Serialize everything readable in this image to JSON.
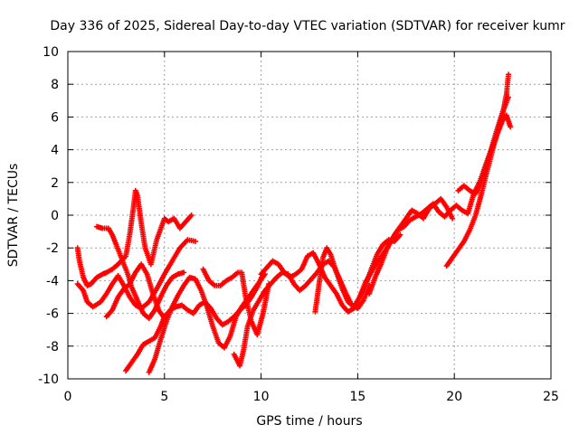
{
  "chart_data": {
    "type": "scatter",
    "title": "Day 336 of 2025, Sidereal Day-to-day VTEC variation (SDTVAR) for receiver kumr",
    "xlabel": "GPS time / hours",
    "ylabel": "SDTVAR / TECUs",
    "xlim": [
      0,
      25
    ],
    "ylim": [
      -10,
      10
    ],
    "x_ticks": [
      0,
      5,
      10,
      15,
      20,
      25
    ],
    "y_ticks": [
      -10,
      -8,
      -6,
      -4,
      -2,
      0,
      2,
      4,
      6,
      8,
      10
    ],
    "grid": true,
    "marker": "plus",
    "color": "#ff0000",
    "series": [
      {
        "x": [
          0.5,
          0.6,
          0.8,
          1.0,
          1.2,
          1.5,
          1.8,
          2.0,
          2.3,
          2.6,
          3.0,
          3.2,
          3.4,
          3.5,
          3.6,
          3.8,
          4.0,
          4.3,
          4.6,
          5.0,
          5.2,
          5.5,
          5.8,
          6.1,
          6.4
        ],
        "y": [
          -2.0,
          -2.8,
          -3.8,
          -4.3,
          -4.2,
          -3.8,
          -3.6,
          -3.5,
          -3.3,
          -3.0,
          -2.5,
          -1.2,
          0.5,
          1.5,
          1.2,
          -0.5,
          -2.0,
          -3.0,
          -1.5,
          -0.2,
          -0.4,
          -0.2,
          -0.8,
          -0.4,
          0.0
        ]
      },
      {
        "x": [
          0.5,
          0.8,
          1.0,
          1.3,
          1.7,
          2.0,
          2.3,
          2.6,
          2.9,
          3.2,
          3.5,
          3.8,
          4.2,
          4.6,
          5.0,
          5.4,
          5.8,
          6.2,
          6.6
        ],
        "y": [
          -4.2,
          -4.6,
          -5.3,
          -5.6,
          -5.3,
          -4.8,
          -4.2,
          -3.7,
          -4.3,
          -5.0,
          -5.5,
          -5.7,
          -5.3,
          -4.5,
          -3.6,
          -2.8,
          -2.0,
          -1.5,
          -1.6
        ]
      },
      {
        "x": [
          1.5,
          1.8,
          2.1,
          2.3,
          2.5,
          2.8,
          3.1,
          3.3,
          3.6,
          3.9,
          4.2,
          4.5,
          4.8,
          5.1,
          5.4,
          5.7,
          6.0
        ],
        "y": [
          -0.7,
          -0.8,
          -0.8,
          -1.2,
          -1.8,
          -2.7,
          -3.6,
          -4.4,
          -5.2,
          -6.0,
          -6.3,
          -5.8,
          -5.0,
          -4.3,
          -3.8,
          -3.6,
          -3.5
        ]
      },
      {
        "x": [
          2.0,
          2.3,
          2.6,
          2.9,
          3.2,
          3.5,
          3.8,
          4.1,
          4.4,
          4.7,
          5.0
        ],
        "y": [
          -6.2,
          -5.8,
          -5.0,
          -4.5,
          -4.2,
          -3.5,
          -3.0,
          -3.6,
          -4.8,
          -5.8,
          -6.3
        ]
      },
      {
        "x": [
          3.0,
          3.3,
          3.6,
          3.9,
          4.2,
          4.5,
          4.8,
          5.0,
          5.3,
          5.6,
          5.9,
          6.2,
          6.5,
          6.8,
          7.1,
          7.4,
          7.7,
          8.0,
          8.3,
          8.6,
          8.9,
          9.2,
          9.5,
          9.8,
          10.1
        ],
        "y": [
          -9.5,
          -9.0,
          -8.5,
          -7.9,
          -7.7,
          -7.5,
          -6.8,
          -6.2,
          -5.8,
          -5.6,
          -5.5,
          -5.8,
          -6.0,
          -5.5,
          -5.3,
          -5.7,
          -6.3,
          -6.7,
          -6.5,
          -6.2,
          -5.8,
          -5.5,
          -5.0,
          -4.4,
          -3.6
        ]
      },
      {
        "x": [
          4.2,
          4.5,
          4.8,
          5.1,
          5.4,
          5.7,
          6.0,
          6.3,
          6.6,
          6.9,
          7.2,
          7.5,
          7.8,
          8.1,
          8.4,
          8.7,
          9.0,
          9.3,
          9.6,
          9.9,
          10.2
        ],
        "y": [
          -9.6,
          -8.8,
          -7.6,
          -6.5,
          -5.6,
          -4.9,
          -4.3,
          -3.8,
          -3.9,
          -4.6,
          -5.6,
          -6.8,
          -7.8,
          -8.1,
          -7.4,
          -6.2,
          -5.6,
          -5.1,
          -4.6,
          -4.1,
          -3.6
        ]
      },
      {
        "x": [
          7.0,
          7.3,
          7.6,
          7.9,
          8.2,
          8.5,
          8.8,
          9.0,
          9.2,
          9.5,
          9.8,
          10.1,
          10.4
        ],
        "y": [
          -3.3,
          -4.0,
          -4.3,
          -4.3,
          -4.0,
          -3.8,
          -3.5,
          -3.5,
          -5.0,
          -6.5,
          -7.3,
          -6.0,
          -4.2
        ]
      },
      {
        "x": [
          8.6,
          8.9,
          9.1,
          9.3,
          9.6,
          9.9,
          10.2,
          10.5,
          10.8,
          11.1,
          11.4,
          11.7,
          12.0,
          12.3,
          12.6,
          12.9,
          13.2,
          13.5,
          13.8,
          14.1,
          14.4,
          14.7,
          15.0,
          15.3,
          15.6
        ],
        "y": [
          -8.5,
          -9.2,
          -8.2,
          -6.8,
          -5.8,
          -5.2,
          -4.6,
          -4.2,
          -3.8,
          -3.5,
          -3.6,
          -4.2,
          -4.6,
          -4.3,
          -3.9,
          -3.5,
          -3.0,
          -2.8,
          -3.2,
          -4.0,
          -4.8,
          -5.5,
          -5.7,
          -5.2,
          -4.3
        ]
      },
      {
        "x": [
          10.0,
          10.3,
          10.6,
          10.9,
          11.2,
          11.5,
          11.8,
          12.1,
          12.4,
          12.7,
          13.0,
          13.3,
          13.6,
          13.9,
          14.2,
          14.5,
          14.8,
          15.1,
          15.4,
          15.7,
          16.0,
          16.3,
          16.6,
          16.9,
          17.2
        ],
        "y": [
          -3.6,
          -3.2,
          -2.8,
          -3.0,
          -3.5,
          -3.8,
          -3.6,
          -3.3,
          -2.5,
          -2.3,
          -3.0,
          -3.8,
          -4.3,
          -4.8,
          -5.5,
          -5.9,
          -5.7,
          -5.0,
          -4.3,
          -3.3,
          -2.4,
          -1.8,
          -1.5,
          -1.6,
          -1.2
        ]
      },
      {
        "x": [
          12.8,
          13.0,
          13.2,
          13.4,
          13.6,
          13.9,
          14.2,
          14.5,
          14.8,
          15.1,
          15.4,
          15.7,
          16.0,
          16.3,
          16.6,
          16.9,
          17.2,
          17.5,
          17.8,
          18.1,
          18.4,
          18.7,
          19.0,
          19.3,
          19.6,
          19.9
        ],
        "y": [
          -5.9,
          -4.2,
          -2.6,
          -2.0,
          -2.4,
          -3.5,
          -4.5,
          -5.3,
          -5.6,
          -5.0,
          -4.1,
          -3.5,
          -2.9,
          -2.4,
          -1.8,
          -1.2,
          -0.7,
          -0.2,
          0.3,
          0.1,
          -0.2,
          0.4,
          0.7,
          1.0,
          0.5,
          -0.2
        ]
      },
      {
        "x": [
          15.6,
          15.9,
          16.2,
          16.5,
          16.8,
          17.1,
          17.4,
          17.7,
          18.0,
          18.3,
          18.6,
          18.9,
          19.2,
          19.5,
          19.8,
          20.1,
          20.4,
          20.7,
          21.0,
          21.3,
          21.6,
          21.9,
          22.2,
          22.5,
          22.8
        ],
        "y": [
          -4.8,
          -3.8,
          -3.0,
          -2.1,
          -1.4,
          -0.9,
          -0.7,
          -0.3,
          -0.1,
          0.1,
          0.4,
          0.7,
          0.2,
          -0.1,
          0.3,
          0.6,
          0.3,
          0.1,
          1.3,
          2.0,
          3.0,
          4.0,
          5.2,
          6.3,
          7.2
        ]
      },
      {
        "x": [
          19.6,
          19.9,
          20.2,
          20.5,
          20.8,
          21.1,
          21.4,
          21.7,
          22.0,
          22.3,
          22.5,
          22.7,
          22.8
        ],
        "y": [
          -3.1,
          -2.6,
          -2.1,
          -1.6,
          -0.9,
          0.0,
          1.3,
          2.7,
          4.1,
          5.3,
          6.2,
          7.4,
          8.6
        ]
      },
      {
        "x": [
          20.2,
          20.5,
          20.8,
          21.1,
          21.4,
          21.7,
          22.0,
          22.3,
          22.5,
          22.7,
          22.9
        ],
        "y": [
          1.5,
          1.8,
          1.5,
          1.3,
          2.1,
          3.2,
          4.3,
          5.2,
          5.8,
          6.1,
          5.4
        ]
      }
    ]
  }
}
